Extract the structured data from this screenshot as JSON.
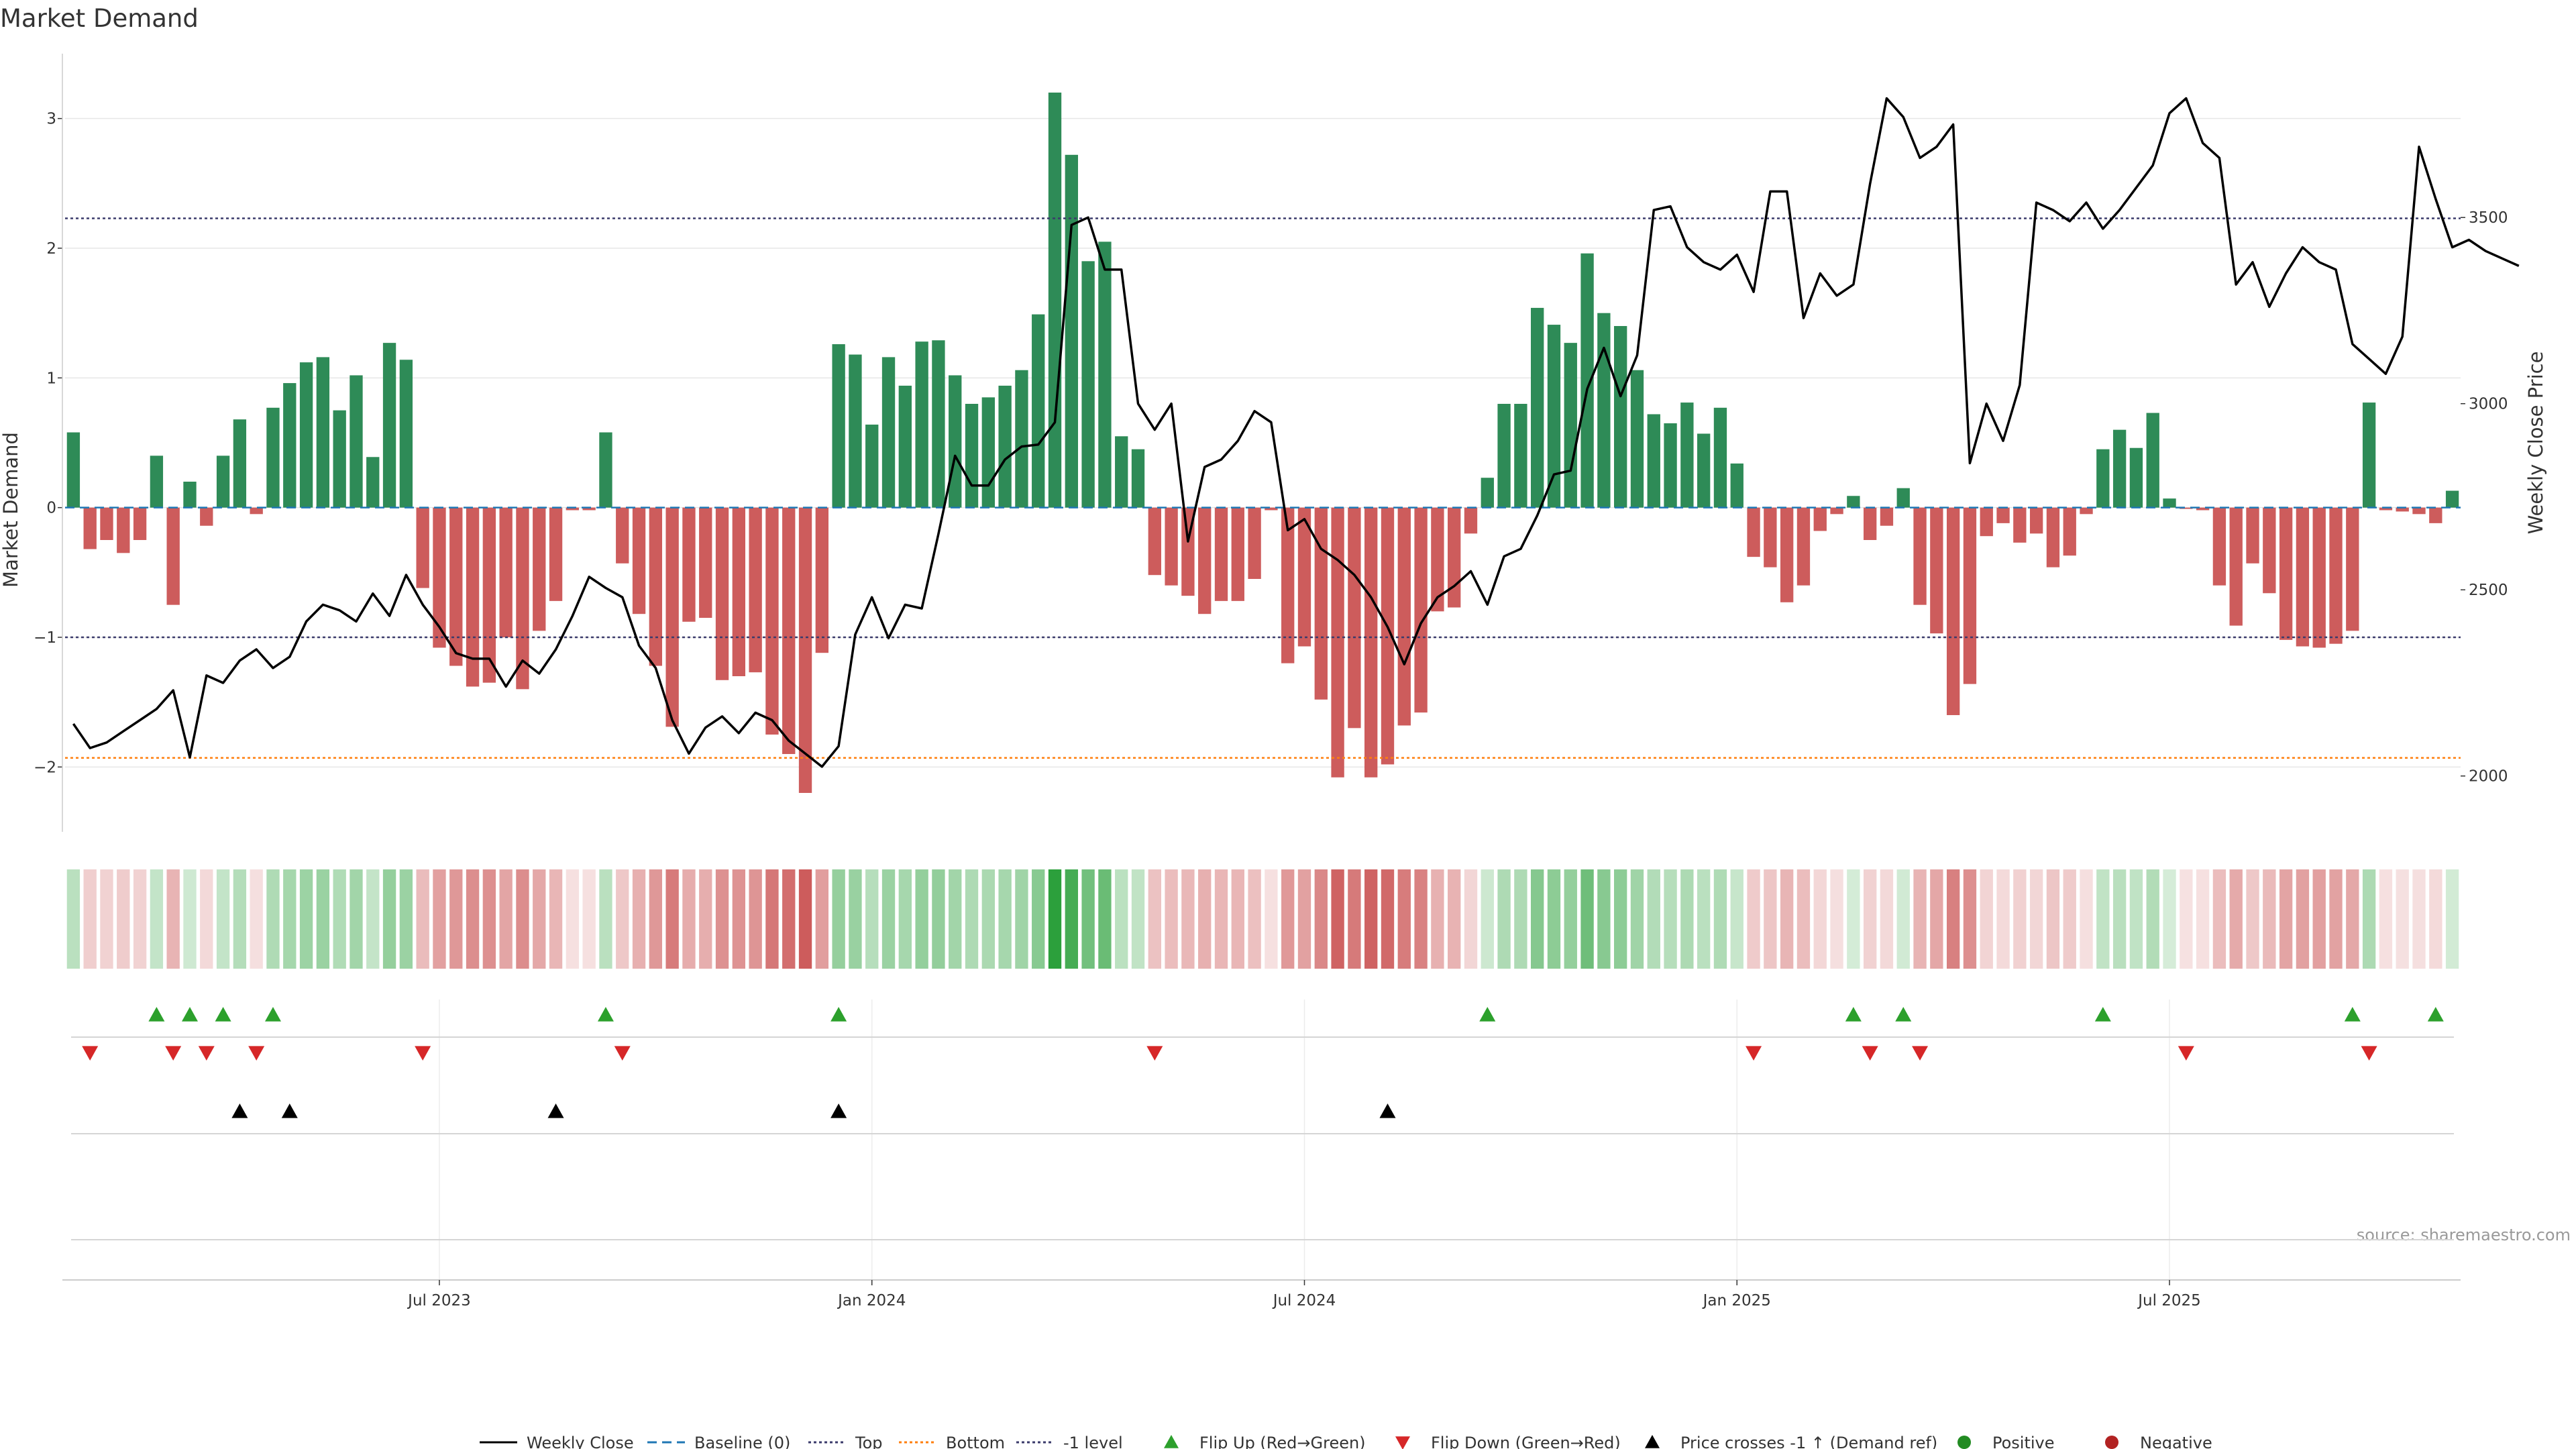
{
  "chart_data": {
    "type": "bar",
    "title": "Market Demand",
    "ylabel": "Market Demand",
    "ylabel_right": "Weekly Close Price",
    "ylim": [
      -2.5,
      3.5
    ],
    "y_ticks": [
      -2,
      -1,
      0,
      1,
      2,
      3
    ],
    "y2lim": [
      1850,
      3940
    ],
    "y2_ticks": [
      2000,
      2500,
      3000,
      3500
    ],
    "x_ticks": [
      {
        "index": 22,
        "label": "Jul 2023"
      },
      {
        "index": 48,
        "label": "Jan 2024"
      },
      {
        "index": 74,
        "label": "Jul 2024"
      },
      {
        "index": 100,
        "label": "Jan 2025"
      },
      {
        "index": 126,
        "label": "Jul 2025"
      }
    ],
    "reference_lines": {
      "top": 2.23,
      "bottom": -1.93,
      "minus_one": -1.0,
      "baseline": 0
    },
    "series": [
      {
        "name": "Market Demand",
        "values": [
          0.58,
          -0.32,
          -0.25,
          -0.35,
          -0.25,
          0.4,
          -0.75,
          0.2,
          -0.14,
          0.4,
          0.68,
          -0.05,
          0.77,
          0.96,
          1.12,
          1.16,
          0.75,
          1.02,
          0.39,
          1.27,
          1.14,
          -0.62,
          -1.08,
          -1.22,
          -1.38,
          -1.35,
          -1.0,
          -1.4,
          -0.95,
          -0.72,
          -0.02,
          -0.02,
          0.58,
          -0.43,
          -0.82,
          -1.22,
          -1.69,
          -0.88,
          -0.85,
          -1.33,
          -1.3,
          -1.27,
          -1.75,
          -1.9,
          -2.2,
          -1.12,
          1.26,
          1.18,
          0.64,
          1.16,
          0.94,
          1.28,
          1.29,
          1.02,
          0.8,
          0.85,
          0.94,
          1.06,
          1.49,
          3.2,
          2.72,
          1.9,
          2.05,
          0.55,
          0.45,
          -0.52,
          -0.6,
          -0.68,
          -0.82,
          -0.72,
          -0.72,
          -0.55,
          -0.02,
          -1.2,
          -1.07,
          -1.48,
          -2.08,
          -1.7,
          -2.08,
          -1.98,
          -1.68,
          -1.58,
          -0.8,
          -0.77,
          -0.2,
          0.23,
          0.8,
          0.8,
          1.54,
          1.41,
          1.27,
          1.96,
          1.5,
          1.4,
          1.06,
          0.72,
          0.65,
          0.81,
          0.57,
          0.77,
          0.34,
          -0.38,
          -0.46,
          -0.73,
          -0.6,
          -0.18,
          -0.05,
          0.09,
          -0.25,
          -0.14,
          0.15,
          -0.75,
          -0.97,
          -1.6,
          -1.36,
          -0.22,
          -0.12,
          -0.27,
          -0.2,
          -0.46,
          -0.37,
          -0.05,
          0.45,
          0.6,
          0.46,
          0.73,
          0.07,
          -0.01,
          -0.02,
          -0.6,
          -0.91,
          -0.43,
          -0.66,
          -1.02,
          -1.07,
          -1.08,
          -1.05,
          -0.95,
          0.81,
          -0.02,
          -0.03,
          -0.05,
          -0.12,
          0.13
        ]
      },
      {
        "name": "Weekly Close",
        "values": [
          2140,
          2075,
          2090,
          2120,
          2150,
          2180,
          2230,
          2050,
          2270,
          2250,
          2310,
          2340,
          2290,
          2320,
          2415,
          2460,
          2445,
          2415,
          2490,
          2430,
          2540,
          2460,
          2400,
          2330,
          2315,
          2315,
          2240,
          2310,
          2275,
          2340,
          2430,
          2535,
          2505,
          2480,
          2350,
          2290,
          2150,
          2060,
          2130,
          2160,
          2115,
          2170,
          2150,
          2095,
          2060,
          2025,
          2080,
          2380,
          2480,
          2370,
          2460,
          2450,
          2650,
          2860,
          2780,
          2780,
          2850,
          2885,
          2890,
          2950,
          3480,
          3500,
          3360,
          3360,
          3000,
          2930,
          3000,
          2630,
          2830,
          2850,
          2900,
          2980,
          2950,
          2660,
          2690,
          2610,
          2580,
          2540,
          2480,
          2400,
          2300,
          2410,
          2480,
          2510,
          2550,
          2460,
          2590,
          2610,
          2700,
          2810,
          2820,
          3040,
          3150,
          3020,
          3130,
          3520,
          3530,
          3420,
          3380,
          3360,
          3400,
          3300,
          3570,
          3570,
          3230,
          3350,
          3290,
          3320,
          3590,
          3820,
          3770,
          3660,
          3690,
          3750,
          2840,
          3000,
          2900,
          3050,
          3540,
          3520,
          3490,
          3540,
          3470,
          3520,
          3580,
          3640,
          3780,
          3820,
          3700,
          3660,
          3320,
          3380,
          3260,
          3350,
          3420,
          3380,
          3360,
          3160,
          3120,
          3080,
          3180,
          3690,
          3550,
          3420,
          3440,
          3410,
          3390,
          3370
        ]
      }
    ],
    "strip_note": "heat strip colors follow the demand value of each week",
    "markers": {
      "flip_up_indices": [
        5,
        7,
        9,
        12,
        32,
        46,
        85,
        107,
        110,
        122,
        137,
        142
      ],
      "flip_down_indices": [
        1,
        6,
        8,
        11,
        21,
        33,
        65,
        101,
        108,
        111,
        127,
        138
      ],
      "price_cross_indices": [
        10,
        13,
        29,
        46,
        79
      ]
    },
    "legend": [
      {
        "label": "Weekly Close",
        "kind": "line-solid",
        "color": "#000000"
      },
      {
        "label": "Baseline (0)",
        "kind": "line-dashed",
        "color": "#1f77b4"
      },
      {
        "label": "Top",
        "kind": "line-dotted",
        "color": "#3b3b6b"
      },
      {
        "label": "Bottom",
        "kind": "line-dotted",
        "color": "#ff7f0e"
      },
      {
        "label": "-1 level",
        "kind": "line-dotted",
        "color": "#3b3b6b"
      },
      {
        "label": "Flip Up (Red→Green)",
        "kind": "triangle-up",
        "color": "#2ca02c"
      },
      {
        "label": "Flip Down (Green→Red)",
        "kind": "triangle-down",
        "color": "#d62728"
      },
      {
        "label": "Price crosses -1 ↑ (Demand ref)",
        "kind": "triangle-up",
        "color": "#000000"
      },
      {
        "label": "Positive",
        "kind": "circle",
        "color": "#228b22"
      },
      {
        "label": "Negative",
        "kind": "circle",
        "color": "#b22222"
      }
    ],
    "source": "source: sharemaestro.com"
  },
  "colors": {
    "positive_bar": "#2e8b57",
    "negative_bar": "#cd5c5c",
    "price_line": "#000000",
    "grid": "#e6e6e6"
  }
}
